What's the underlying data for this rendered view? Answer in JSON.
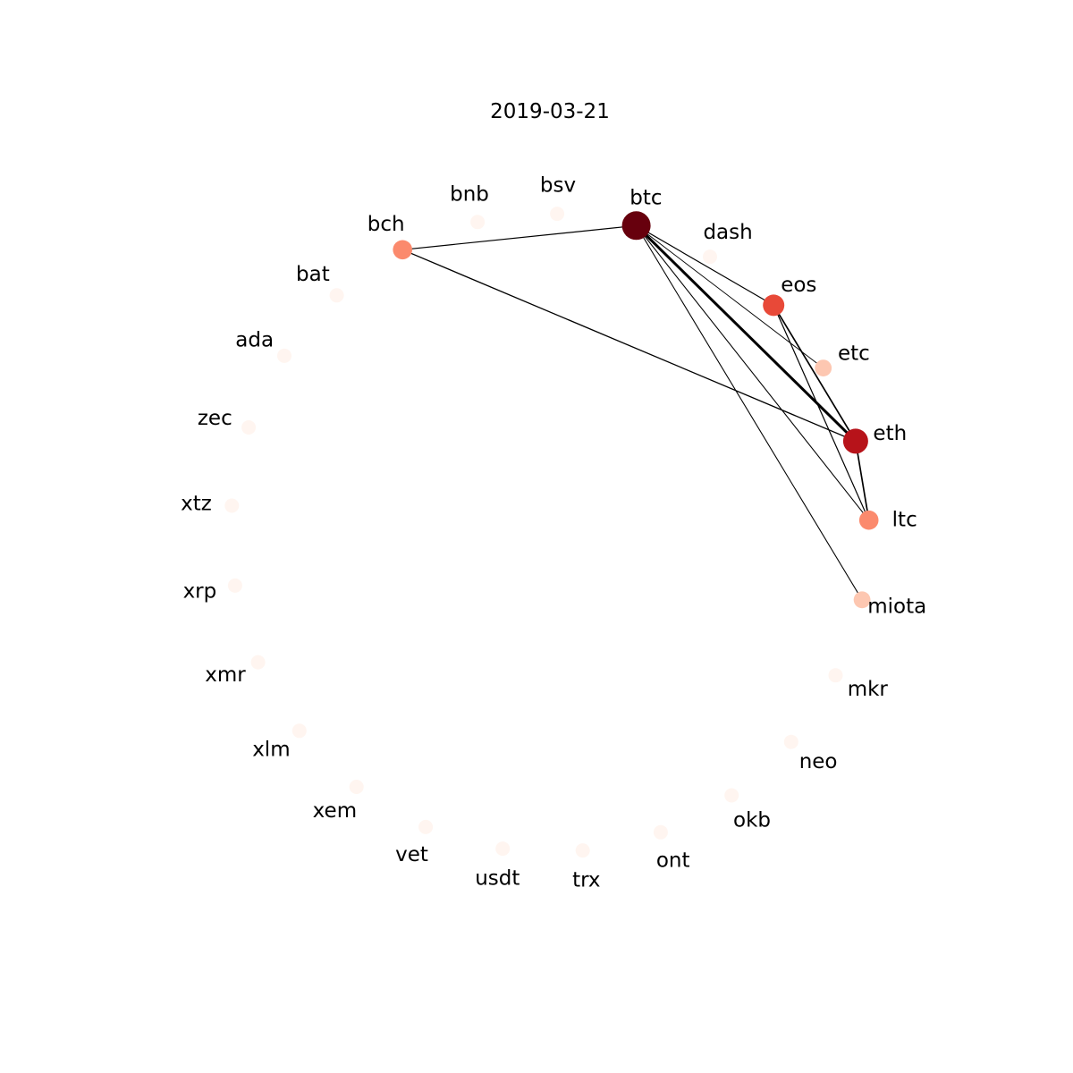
{
  "title": "2019-03-21",
  "node_color_scale": [
    "#fff5f0",
    "#fcbba1",
    "#fb6a4a",
    "#cb181d",
    "#67000d"
  ],
  "nodes": [
    {
      "id": "btc",
      "label": "btc",
      "level": 1.0,
      "size": 1.0
    },
    {
      "id": "bsv",
      "label": "bsv",
      "level": 0.0,
      "size": 0.0
    },
    {
      "id": "bnb",
      "label": "bnb",
      "level": 0.0,
      "size": 0.0
    },
    {
      "id": "bch",
      "label": "bch",
      "level": 0.4,
      "size": 0.35
    },
    {
      "id": "bat",
      "label": "bat",
      "level": 0.0,
      "size": 0.0
    },
    {
      "id": "ada",
      "label": "ada",
      "level": 0.0,
      "size": 0.0
    },
    {
      "id": "zec",
      "label": "zec",
      "level": 0.0,
      "size": 0.0
    },
    {
      "id": "xtz",
      "label": "xtz",
      "level": 0.0,
      "size": 0.0
    },
    {
      "id": "xrp",
      "label": "xrp",
      "level": 0.0,
      "size": 0.0
    },
    {
      "id": "xmr",
      "label": "xmr",
      "level": 0.0,
      "size": 0.0
    },
    {
      "id": "xlm",
      "label": "xlm",
      "level": 0.0,
      "size": 0.0
    },
    {
      "id": "xem",
      "label": "xem",
      "level": 0.0,
      "size": 0.0
    },
    {
      "id": "vet",
      "label": "vet",
      "level": 0.0,
      "size": 0.0
    },
    {
      "id": "usdt",
      "label": "usdt",
      "level": 0.0,
      "size": 0.0
    },
    {
      "id": "trx",
      "label": "trx",
      "level": 0.0,
      "size": 0.0
    },
    {
      "id": "ont",
      "label": "ont",
      "level": 0.0,
      "size": 0.0
    },
    {
      "id": "okb",
      "label": "okb",
      "level": 0.0,
      "size": 0.0
    },
    {
      "id": "neo",
      "label": "neo",
      "level": 0.0,
      "size": 0.0
    },
    {
      "id": "mkr",
      "label": "mkr",
      "level": 0.0,
      "size": 0.0
    },
    {
      "id": "miota",
      "label": "miota",
      "level": 0.2,
      "size": 0.17
    },
    {
      "id": "ltc",
      "label": "ltc",
      "level": 0.4,
      "size": 0.35
    },
    {
      "id": "eth",
      "label": "eth",
      "level": 0.8,
      "size": 0.75
    },
    {
      "id": "etc",
      "label": "etc",
      "level": 0.2,
      "size": 0.17
    },
    {
      "id": "eos",
      "label": "eos",
      "level": 0.6,
      "size": 0.5
    },
    {
      "id": "dash",
      "label": "dash",
      "level": 0.0,
      "size": 0.0
    }
  ],
  "edges": [
    {
      "source": "btc",
      "target": "eth",
      "weight": 1.0
    },
    {
      "source": "btc",
      "target": "eos",
      "weight": 0.25
    },
    {
      "source": "btc",
      "target": "etc",
      "weight": 0.15
    },
    {
      "source": "btc",
      "target": "ltc",
      "weight": 0.2
    },
    {
      "source": "btc",
      "target": "miota",
      "weight": 0.2
    },
    {
      "source": "btc",
      "target": "bch",
      "weight": 0.25
    },
    {
      "source": "eth",
      "target": "eos",
      "weight": 0.45
    },
    {
      "source": "eth",
      "target": "ltc",
      "weight": 0.45
    },
    {
      "source": "eth",
      "target": "bch",
      "weight": 0.3
    },
    {
      "source": "eos",
      "target": "ltc",
      "weight": 0.25
    }
  ]
}
